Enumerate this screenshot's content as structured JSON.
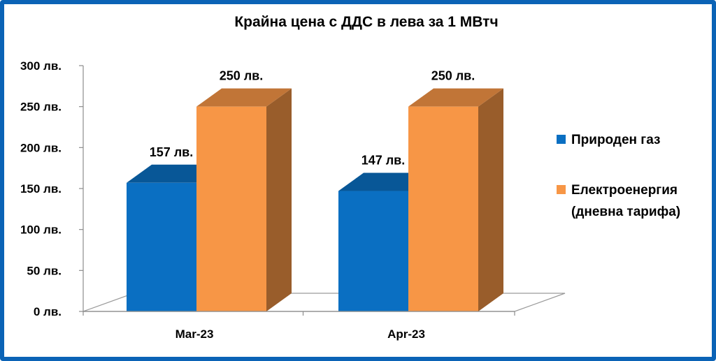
{
  "chart_data": {
    "type": "bar",
    "title": "Крайна цена с ДДС в лева за 1 МВтч",
    "categories": [
      "Mar-23",
      "Apr-23"
    ],
    "series": [
      {
        "name": "Природен газ",
        "values": [
          157,
          147
        ],
        "color": "#0a6fc2",
        "data_labels": [
          "157 лв.",
          "147 лв."
        ]
      },
      {
        "name": "Електроенергия (дневна тарифа)",
        "legend_lines": [
          "Електроенергия",
          "(дневна тарифа)"
        ],
        "values": [
          250,
          250
        ],
        "color": "#f79646",
        "data_labels": [
          "250 лв.",
          "250 лв."
        ]
      }
    ],
    "y_ticks": [
      {
        "value": 0,
        "label": "0 лв."
      },
      {
        "value": 50,
        "label": "50 лв."
      },
      {
        "value": 100,
        "label": "100 лв."
      },
      {
        "value": 150,
        "label": "150 лв."
      },
      {
        "value": 200,
        "label": "200 лв."
      },
      {
        "value": 250,
        "label": "250 лв."
      },
      {
        "value": 300,
        "label": "300 лв."
      }
    ],
    "ylim": [
      0,
      300
    ],
    "grid": false,
    "legend_position": "right",
    "style": "3d-column",
    "frame_color": "#0b63b6"
  }
}
